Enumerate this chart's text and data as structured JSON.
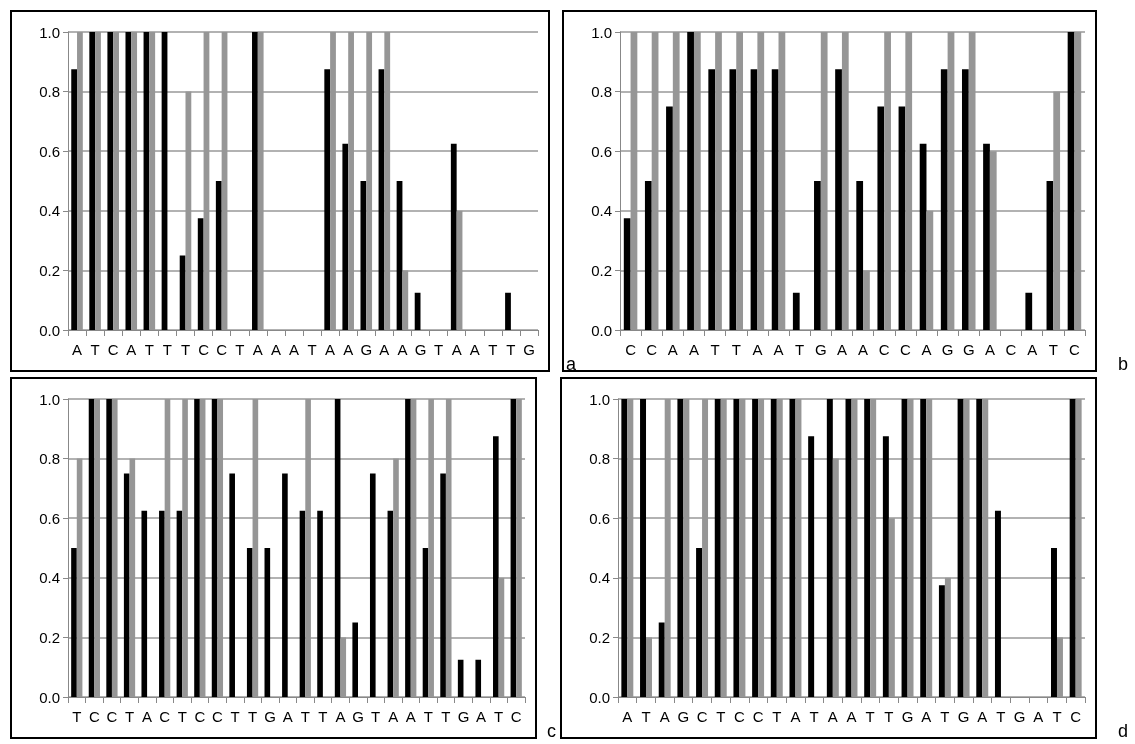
{
  "chart_data": [
    {
      "type": "bar",
      "categories": [
        "A",
        "T",
        "C",
        "A",
        "T",
        "T",
        "T",
        "C",
        "C",
        "T",
        "A",
        "A",
        "A",
        "T",
        "A",
        "A",
        "G",
        "A",
        "A",
        "G",
        "T",
        "A",
        "A",
        "T",
        "T",
        "G"
      ],
      "series": [
        {
          "color": "#000000",
          "values": [
            0.875,
            1,
            1,
            1,
            1,
            1,
            0.25,
            0.375,
            0.5,
            0,
            1,
            0,
            0,
            0,
            0.875,
            0.625,
            0.5,
            0.875,
            0.5,
            0.125,
            0,
            0.625,
            0,
            0,
            0.125,
            0
          ]
        },
        {
          "color": "#969696",
          "values": [
            1,
            1,
            1,
            1,
            1,
            0,
            0.8,
            1,
            1,
            0,
            1,
            0,
            0,
            0,
            1,
            1,
            1,
            1,
            0.2,
            0,
            0,
            0.4,
            0,
            0,
            0,
            0
          ]
        }
      ],
      "ylim": [
        0,
        1
      ],
      "yticks": [
        {
          "value": 0,
          "label": "0.0"
        },
        {
          "value": 0.2,
          "label": "0.2"
        },
        {
          "value": 0.4,
          "label": "0.4"
        },
        {
          "value": 0.6,
          "label": "0.6"
        },
        {
          "value": 0.8,
          "label": "0.8"
        },
        {
          "value": 1,
          "label": "1.0"
        }
      ],
      "grid": "y",
      "annotations": [
        "a"
      ]
    },
    {
      "type": "bar",
      "categories": [
        "C",
        "C",
        "A",
        "A",
        "T",
        "T",
        "A",
        "A",
        "T",
        "G",
        "A",
        "A",
        "C",
        "C",
        "A",
        "G",
        "G",
        "A",
        "C",
        "A",
        "T",
        "C"
      ],
      "series": [
        {
          "color": "#000000",
          "values": [
            0.375,
            0.5,
            0.75,
            1,
            0.875,
            0.875,
            0.875,
            0.875,
            0.125,
            0.5,
            0.875,
            0.5,
            0.75,
            0.75,
            0.625,
            0.875,
            0.875,
            0.625,
            0,
            0.125,
            0.5,
            1
          ]
        },
        {
          "color": "#969696",
          "values": [
            1,
            1,
            1,
            1,
            1,
            1,
            1,
            1,
            0,
            1,
            1,
            0.2,
            1,
            1,
            0.4,
            1,
            1,
            0.6,
            0,
            0,
            0.8,
            1
          ]
        }
      ],
      "ylim": [
        0,
        1
      ],
      "yticks": [
        {
          "value": 0,
          "label": "0.0"
        },
        {
          "value": 0.2,
          "label": "0.2"
        },
        {
          "value": 0.4,
          "label": "0.4"
        },
        {
          "value": 0.6,
          "label": "0.6"
        },
        {
          "value": 0.8,
          "label": "0.8"
        },
        {
          "value": 1,
          "label": "1.0"
        }
      ],
      "grid": "y",
      "annotations": [
        "b"
      ]
    },
    {
      "type": "bar",
      "categories": [
        "T",
        "C",
        "C",
        "T",
        "A",
        "C",
        "T",
        "C",
        "C",
        "T",
        "T",
        "G",
        "A",
        "T",
        "T",
        "A",
        "G",
        "T",
        "A",
        "A",
        "T",
        "T",
        "G",
        "A",
        "T",
        "C"
      ],
      "series": [
        {
          "color": "#000000",
          "values": [
            0.5,
            1,
            1,
            0.75,
            0.625,
            0.625,
            0.625,
            1,
            1,
            0.75,
            0.5,
            0.5,
            0.75,
            0.625,
            0.625,
            1,
            0.25,
            0.75,
            0.625,
            1,
            0.5,
            0.75,
            0.125,
            0.125,
            0.875,
            1
          ]
        },
        {
          "color": "#969696",
          "values": [
            0.8,
            1,
            1,
            0.8,
            0,
            1,
            1,
            1,
            1,
            0,
            1,
            0,
            0,
            1,
            0,
            0.2,
            0,
            0,
            0.8,
            1,
            1,
            1,
            0,
            0,
            0.4,
            1
          ]
        }
      ],
      "ylim": [
        0,
        1
      ],
      "yticks": [
        {
          "value": 0,
          "label": "0.0"
        },
        {
          "value": 0.2,
          "label": "0.2"
        },
        {
          "value": 0.4,
          "label": "0.4"
        },
        {
          "value": 0.6,
          "label": "0.6"
        },
        {
          "value": 0.8,
          "label": "0.8"
        },
        {
          "value": 1,
          "label": "1.0"
        }
      ],
      "grid": "y",
      "annotations": [
        "c"
      ]
    },
    {
      "type": "bar",
      "categories": [
        "A",
        "T",
        "A",
        "G",
        "C",
        "T",
        "C",
        "C",
        "T",
        "A",
        "T",
        "A",
        "A",
        "T",
        "T",
        "G",
        "A",
        "T",
        "G",
        "A",
        "T",
        "G",
        "A",
        "T",
        "C"
      ],
      "series": [
        {
          "color": "#000000",
          "values": [
            1,
            1,
            0.25,
            1,
            0.5,
            1,
            1,
            1,
            1,
            1,
            0.875,
            1,
            1,
            1,
            0.875,
            1,
            1,
            0.375,
            1,
            1,
            0.625,
            0,
            0,
            0.5,
            1
          ]
        },
        {
          "color": "#969696",
          "values": [
            1,
            0.2,
            1,
            1,
            1,
            1,
            1,
            1,
            1,
            1,
            0,
            0.8,
            1,
            1,
            0.6,
            1,
            1,
            0.4,
            1,
            1,
            0,
            0,
            0,
            0.2,
            1
          ]
        }
      ],
      "ylim": [
        0,
        1
      ],
      "yticks": [
        {
          "value": 0,
          "label": "0.0"
        },
        {
          "value": 0.2,
          "label": "0.2"
        },
        {
          "value": 0.4,
          "label": "0.4"
        },
        {
          "value": 0.6,
          "label": "0.6"
        },
        {
          "value": 0.8,
          "label": "0.8"
        },
        {
          "value": 1,
          "label": "1.0"
        }
      ],
      "grid": "y",
      "annotations": [
        "d"
      ]
    }
  ]
}
